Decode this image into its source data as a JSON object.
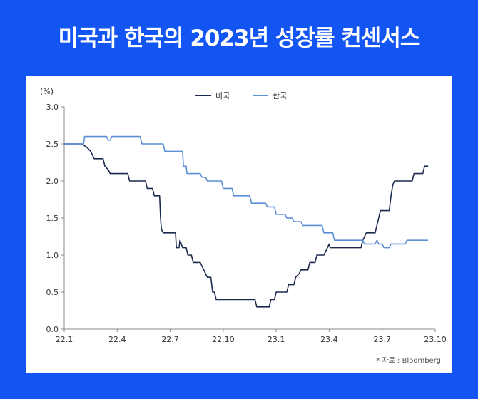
{
  "title": "미국과 한국의 2023년 성장률 컨센서스",
  "source_note": "* 자료 : Bloomberg",
  "colors": {
    "background": "#1355f2",
    "us": "#1b2a4e",
    "korea": "#5b8fd6"
  },
  "chart_data": {
    "type": "line",
    "ylabel": "(%)",
    "xlabel": "",
    "ylim": [
      0,
      3
    ],
    "yticks": [
      "0.0",
      "0.5",
      "1.0",
      "1.5",
      "2.0",
      "2.5",
      "3.0"
    ],
    "xticks": [
      "22.1",
      "22.4",
      "22.7",
      "22.10",
      "23.1",
      "23.4",
      "23.7",
      "23.10"
    ],
    "legend_position": "top-center",
    "grid": false,
    "series": [
      {
        "name": "미국",
        "color": "#1b2a4e",
        "points": [
          [
            0,
            2.5
          ],
          [
            1.0,
            2.5
          ],
          [
            1.3,
            2.45
          ],
          [
            1.5,
            2.4
          ],
          [
            1.7,
            2.3
          ],
          [
            2.2,
            2.3
          ],
          [
            2.3,
            2.2
          ],
          [
            2.5,
            2.15
          ],
          [
            2.6,
            2.1
          ],
          [
            3.6,
            2.1
          ],
          [
            3.7,
            2.0
          ],
          [
            4.6,
            2.0
          ],
          [
            4.7,
            1.9
          ],
          [
            5.0,
            1.9
          ],
          [
            5.1,
            1.8
          ],
          [
            5.4,
            1.8
          ],
          [
            5.45,
            1.5
          ],
          [
            5.5,
            1.35
          ],
          [
            5.6,
            1.3
          ],
          [
            6.3,
            1.3
          ],
          [
            6.35,
            1.1
          ],
          [
            6.5,
            1.1
          ],
          [
            6.55,
            1.2
          ],
          [
            6.7,
            1.1
          ],
          [
            6.9,
            1.1
          ],
          [
            7.0,
            1.0
          ],
          [
            7.2,
            1.0
          ],
          [
            7.3,
            0.9
          ],
          [
            7.7,
            0.9
          ],
          [
            7.8,
            0.85
          ],
          [
            8.0,
            0.75
          ],
          [
            8.1,
            0.7
          ],
          [
            8.3,
            0.7
          ],
          [
            8.35,
            0.6
          ],
          [
            8.4,
            0.5
          ],
          [
            8.5,
            0.5
          ],
          [
            8.6,
            0.4
          ],
          [
            9.0,
            0.4
          ],
          [
            10.8,
            0.4
          ],
          [
            10.9,
            0.3
          ],
          [
            11.6,
            0.3
          ],
          [
            11.7,
            0.4
          ],
          [
            11.9,
            0.4
          ],
          [
            12.0,
            0.5
          ],
          [
            12.6,
            0.5
          ],
          [
            12.7,
            0.6
          ],
          [
            13.0,
            0.6
          ],
          [
            13.1,
            0.7
          ],
          [
            13.3,
            0.75
          ],
          [
            13.4,
            0.8
          ],
          [
            13.8,
            0.8
          ],
          [
            13.9,
            0.9
          ],
          [
            14.2,
            0.9
          ],
          [
            14.3,
            1.0
          ],
          [
            14.7,
            1.0
          ],
          [
            14.8,
            1.05
          ],
          [
            14.9,
            1.1
          ],
          [
            15.0,
            1.15
          ],
          [
            15.05,
            1.1
          ],
          [
            16.8,
            1.1
          ],
          [
            16.9,
            1.2
          ],
          [
            17.0,
            1.25
          ],
          [
            17.1,
            1.3
          ],
          [
            17.6,
            1.3
          ],
          [
            17.7,
            1.4
          ],
          [
            17.8,
            1.5
          ],
          [
            17.9,
            1.6
          ],
          [
            18.4,
            1.6
          ],
          [
            18.5,
            1.8
          ],
          [
            18.6,
            1.95
          ],
          [
            18.7,
            2.0
          ],
          [
            19.7,
            2.0
          ],
          [
            19.8,
            2.1
          ],
          [
            20.3,
            2.1
          ],
          [
            20.4,
            2.2
          ],
          [
            20.6,
            2.2
          ]
        ]
      },
      {
        "name": "한국",
        "color": "#5b8fd6",
        "points": [
          [
            0,
            2.5
          ],
          [
            1.1,
            2.5
          ],
          [
            1.15,
            2.6
          ],
          [
            2.4,
            2.6
          ],
          [
            2.5,
            2.55
          ],
          [
            2.6,
            2.55
          ],
          [
            2.7,
            2.6
          ],
          [
            4.3,
            2.6
          ],
          [
            4.4,
            2.5
          ],
          [
            5.6,
            2.5
          ],
          [
            5.7,
            2.4
          ],
          [
            6.7,
            2.4
          ],
          [
            6.75,
            2.2
          ],
          [
            6.9,
            2.2
          ],
          [
            6.95,
            2.1
          ],
          [
            7.7,
            2.1
          ],
          [
            7.8,
            2.05
          ],
          [
            8.0,
            2.05
          ],
          [
            8.1,
            2.0
          ],
          [
            8.9,
            2.0
          ],
          [
            9.0,
            1.9
          ],
          [
            9.5,
            1.9
          ],
          [
            9.6,
            1.8
          ],
          [
            10.5,
            1.8
          ],
          [
            10.6,
            1.7
          ],
          [
            11.4,
            1.7
          ],
          [
            11.5,
            1.65
          ],
          [
            11.9,
            1.65
          ],
          [
            12.0,
            1.55
          ],
          [
            12.5,
            1.55
          ],
          [
            12.6,
            1.5
          ],
          [
            12.9,
            1.5
          ],
          [
            13.0,
            1.45
          ],
          [
            13.4,
            1.45
          ],
          [
            13.5,
            1.4
          ],
          [
            14.6,
            1.4
          ],
          [
            14.7,
            1.3
          ],
          [
            15.2,
            1.3
          ],
          [
            15.3,
            1.2
          ],
          [
            16.9,
            1.2
          ],
          [
            17.0,
            1.15
          ],
          [
            17.6,
            1.15
          ],
          [
            17.7,
            1.2
          ],
          [
            17.8,
            1.15
          ],
          [
            18.0,
            1.15
          ],
          [
            18.1,
            1.1
          ],
          [
            18.4,
            1.1
          ],
          [
            18.5,
            1.15
          ],
          [
            19.3,
            1.15
          ],
          [
            19.4,
            1.2
          ],
          [
            20.6,
            1.2
          ]
        ]
      }
    ]
  }
}
